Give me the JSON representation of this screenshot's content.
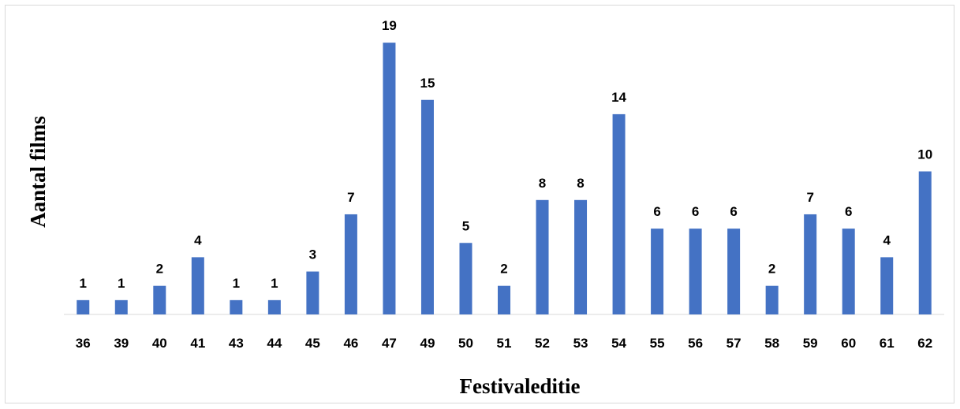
{
  "chart_data": {
    "type": "bar",
    "title": "",
    "xlabel": "Festivaleditie",
    "ylabel": "Aantal films",
    "categories": [
      "36",
      "39",
      "40",
      "41",
      "43",
      "44",
      "45",
      "46",
      "47",
      "49",
      "50",
      "51",
      "52",
      "53",
      "54",
      "55",
      "56",
      "57",
      "58",
      "59",
      "60",
      "61",
      "62"
    ],
    "values": [
      1,
      1,
      2,
      4,
      1,
      1,
      3,
      7,
      19,
      15,
      5,
      2,
      8,
      8,
      14,
      6,
      6,
      6,
      2,
      7,
      6,
      4,
      10
    ],
    "ylim": [
      0,
      19
    ],
    "grid": false,
    "legend": "none",
    "bar_color": "#4472C4"
  }
}
